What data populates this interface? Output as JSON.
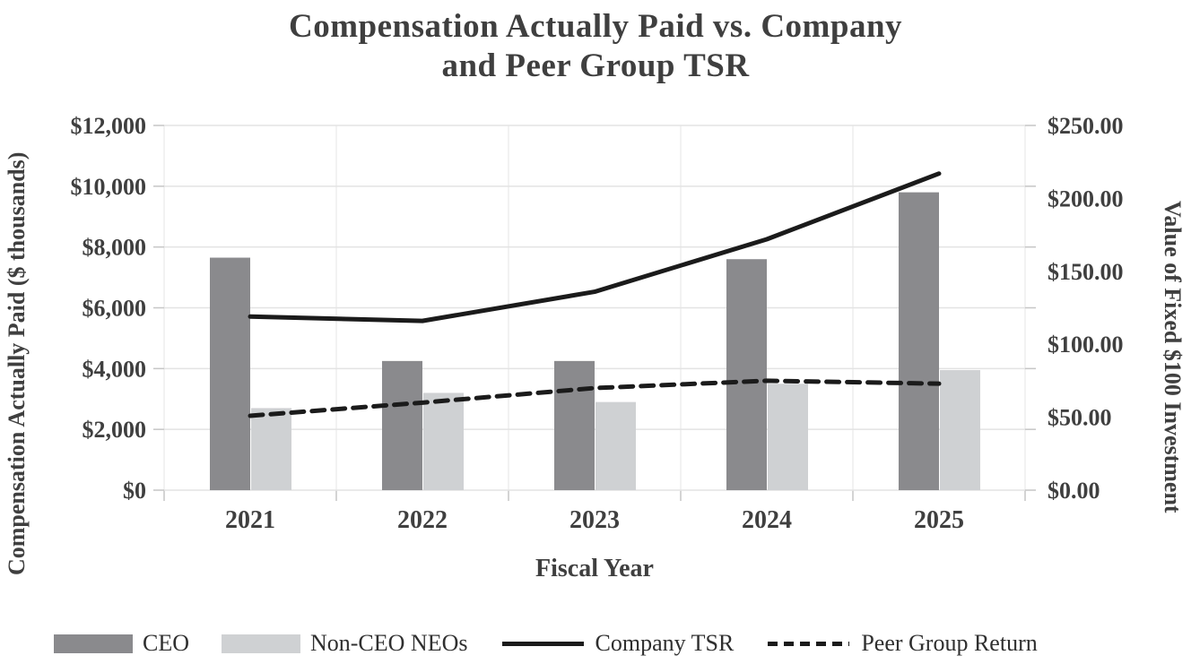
{
  "header": {
    "title_line1": "Compensation Actually Paid vs. Company",
    "title_line2": "and Peer Group TSR"
  },
  "colors": {
    "text": "#3f3f3f",
    "grid": "#e3e3e3",
    "vertical_grid": "#ececec",
    "tick": "#c6c6c6",
    "ceo_bar": "#8a8a8d",
    "non_ceo_bar": "#cfd1d3",
    "line": "#1b1b1b"
  },
  "chart_data": {
    "type": "bar",
    "subtype": "combo-bar-line-dual-axis",
    "title": "Compensation Actually Paid vs. Company and Peer Group TSR",
    "categories": [
      "2021",
      "2022",
      "2023",
      "2024",
      "2025"
    ],
    "xlabel": "Fiscal Year",
    "grid": "horizontal major gridlines; faint vertical lines at category boundaries",
    "legend_position": "bottom",
    "left_axis": {
      "label": "Compensation Actually Paid ($ thousands)",
      "min": 0,
      "max": 12000,
      "step": 2000,
      "tick_labels": [
        "$0",
        "$2,000",
        "$4,000",
        "$6,000",
        "$8,000",
        "$10,000",
        "$12,000"
      ]
    },
    "right_axis": {
      "label": "Value of Fixed $100 Investment",
      "min": 0,
      "max": 250,
      "step": 50,
      "tick_labels": [
        "$0.00",
        "$50.00",
        "$100.00",
        "$150.00",
        "$200.00",
        "$250.00"
      ]
    },
    "series": [
      {
        "name": "CEO",
        "type": "bar",
        "axis": "left",
        "color": "#8a8a8d",
        "values": [
          7650,
          4250,
          4250,
          7600,
          9800
        ]
      },
      {
        "name": "Non-CEO NEOs",
        "type": "bar",
        "axis": "left",
        "color": "#cfd1d3",
        "values": [
          2700,
          3200,
          2900,
          3500,
          3950
        ]
      },
      {
        "name": "Company TSR",
        "type": "line",
        "style": "solid",
        "axis": "right",
        "color": "#1b1b1b",
        "values": [
          119,
          116,
          136,
          172,
          217
        ]
      },
      {
        "name": "Peer Group Return",
        "type": "line",
        "style": "dashed",
        "axis": "right",
        "color": "#1b1b1b",
        "values": [
          51,
          60,
          70,
          75,
          73
        ]
      }
    ]
  }
}
